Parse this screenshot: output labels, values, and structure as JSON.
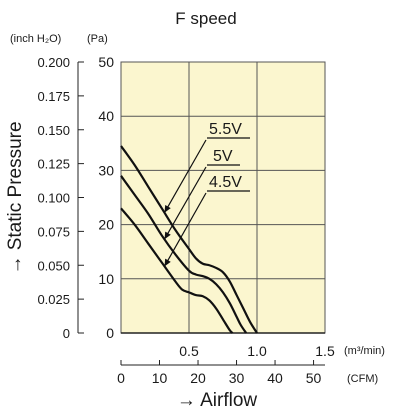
{
  "chart_data": {
    "type": "line",
    "title": "F speed",
    "y_unit_left": "(inch H₂O)",
    "y_unit_right": "(Pa)",
    "ylabel": "→ Static Pressure",
    "xlabel": "→ Airflow",
    "x_unit_m3": "(m³/min)",
    "x_unit_cfm": "(CFM)",
    "x_m3_ticks": [
      "0.5",
      "1.0",
      "1.5"
    ],
    "x_m3_tick_values": [
      0.5,
      1.0,
      1.5
    ],
    "x_cfm_ticks": [
      "0",
      "10",
      "20",
      "30",
      "40",
      "50"
    ],
    "x_cfm_tick_values": [
      0,
      10,
      20,
      30,
      40,
      50
    ],
    "y_pa_ticks": [
      "0",
      "10",
      "20",
      "30",
      "40",
      "50"
    ],
    "y_pa_tick_values": [
      0,
      10,
      20,
      30,
      40,
      50
    ],
    "y_inch_ticks": [
      "0",
      "0.025",
      "0.050",
      "0.075",
      "0.100",
      "0.125",
      "0.150",
      "0.175",
      "0.200"
    ],
    "y_inch_tick_values": [
      0,
      0.025,
      0.05,
      0.075,
      0.1,
      0.125,
      0.15,
      0.175,
      0.2
    ],
    "xlim": [
      0,
      1.5
    ],
    "ylim": [
      0,
      50
    ],
    "grid": true,
    "colors": {
      "plot_bg": "#fbf6cf",
      "grid": "#555555",
      "curve": "#111111",
      "text": "#1a1a1a"
    },
    "series": [
      {
        "name": "5.5V",
        "x": [
          0,
          0.1,
          0.2,
          0.3,
          0.4,
          0.5,
          0.55,
          0.6,
          0.65,
          0.7,
          0.75,
          0.8,
          0.85,
          0.9,
          0.95,
          1.0
        ],
        "y": [
          34.5,
          31.0,
          27.0,
          23.0,
          19.0,
          15.5,
          13.8,
          12.8,
          12.5,
          12.0,
          11.2,
          9.5,
          7.0,
          4.5,
          2.0,
          0
        ]
      },
      {
        "name": "5V",
        "x": [
          0,
          0.1,
          0.2,
          0.3,
          0.4,
          0.5,
          0.55,
          0.6,
          0.65,
          0.7,
          0.75,
          0.8,
          0.85,
          0.88,
          0.92
        ],
        "y": [
          29.0,
          25.5,
          22.0,
          18.0,
          14.5,
          11.5,
          10.8,
          10.5,
          10.0,
          9.0,
          7.5,
          5.5,
          3.0,
          1.5,
          0
        ]
      },
      {
        "name": "4.5V",
        "x": [
          0,
          0.1,
          0.2,
          0.3,
          0.4,
          0.45,
          0.5,
          0.55,
          0.6,
          0.65,
          0.7,
          0.75,
          0.8,
          0.82
        ],
        "y": [
          23.0,
          20.0,
          16.5,
          13.0,
          9.5,
          8.0,
          7.5,
          7.0,
          6.8,
          6.0,
          4.5,
          2.5,
          0.5,
          0
        ]
      }
    ],
    "annotations": [
      {
        "label": "5.5V",
        "series": "5.5V"
      },
      {
        "label": "5V",
        "series": "5V"
      },
      {
        "label": "4.5V",
        "series": "4.5V"
      }
    ]
  }
}
